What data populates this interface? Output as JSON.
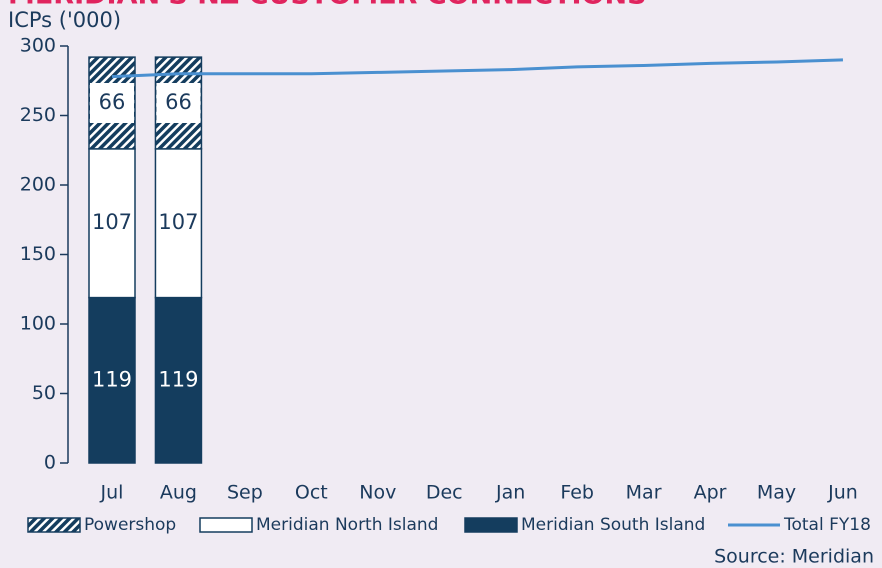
{
  "chart_data": {
    "type": "bar",
    "title": "MERIDIAN'S NZ CUSTOMER CONNECTIONS",
    "y_label": "ICPs ('000)",
    "source": "Source: Meridian",
    "categories": [
      "Jul",
      "Aug",
      "Sep",
      "Oct",
      "Nov",
      "Dec",
      "Jan",
      "Feb",
      "Mar",
      "Apr",
      "May",
      "Jun"
    ],
    "series": [
      {
        "name": "Meridian South Island",
        "type": "bar",
        "color": "#143d5e",
        "values": [
          119,
          119,
          null,
          null,
          null,
          null,
          null,
          null,
          null,
          null,
          null,
          null
        ]
      },
      {
        "name": "Meridian North Island",
        "type": "bar",
        "color": "#ffffff",
        "values": [
          107,
          107,
          null,
          null,
          null,
          null,
          null,
          null,
          null,
          null,
          null,
          null
        ]
      },
      {
        "name": "Powershop",
        "type": "bar",
        "color": "#143d5e",
        "pattern": "hatch",
        "values": [
          66,
          66,
          null,
          null,
          null,
          null,
          null,
          null,
          null,
          null,
          null,
          null
        ]
      },
      {
        "name": "Total FY18",
        "type": "line",
        "color": "#4a90d0",
        "values": [
          278,
          280,
          280,
          280,
          281,
          282,
          283,
          285,
          286,
          287.5,
          288.5,
          290
        ]
      }
    ],
    "stacked": true,
    "data_labels": true,
    "ylim": [
      0,
      300
    ],
    "yticks": [
      0,
      50,
      100,
      150,
      200,
      250,
      300
    ],
    "grid": false
  }
}
